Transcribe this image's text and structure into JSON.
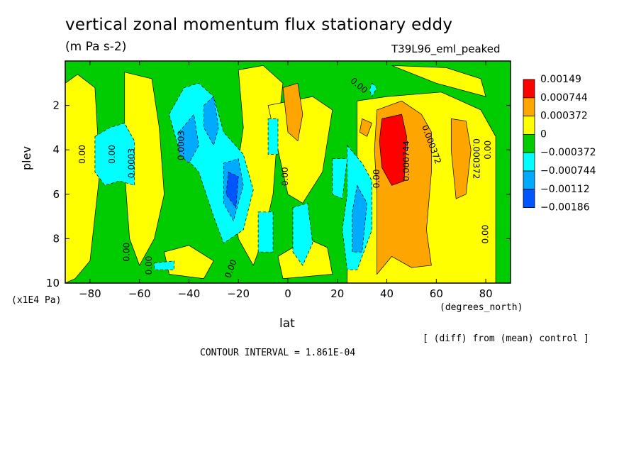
{
  "header": {
    "title": "vertical zonal momentum flux stationary eddy",
    "units": "(m Pa s-2)",
    "run": "T39L96_eml_peaked"
  },
  "footer": {
    "diff_note": "[ (diff) from (mean) control ]",
    "contour_interval": "CONTOUR INTERVAL = 1.861E-04"
  },
  "chart_data": {
    "type": "heatmap",
    "title": "vertical zonal momentum flux stationary eddy",
    "subtitle": "(m Pa s-2)",
    "xlabel": "lat",
    "xunit": "(degrees_north)",
    "ylabel": "plev",
    "yunit": "(x1E4 Pa)",
    "xlim": [
      -90,
      90
    ],
    "ylim": [
      10,
      0
    ],
    "x_ticks": [
      -80,
      -60,
      -40,
      -20,
      0,
      20,
      40,
      60,
      80
    ],
    "x_tick_labels": [
      "−80",
      "−60",
      "−40",
      "−20",
      "0",
      "20",
      "40",
      "60",
      "80"
    ],
    "y_ticks": [
      2,
      4,
      6,
      8,
      10
    ],
    "y_tick_labels": [
      "2",
      "4",
      "6",
      "8",
      "10"
    ],
    "grid": false,
    "legend_position": "right",
    "colors": {
      "red": "#ff0000",
      "orange": "#ffa500",
      "yellow": "#ffff00",
      "green": "#00cc00",
      "cyan": "#00ffff",
      "lightblue": "#00aaff",
      "blue": "#0055ff"
    },
    "legend": [
      {
        "label": "0.00149",
        "color": "#ff0000"
      },
      {
        "label": "0.000744",
        "color": "#ffa500"
      },
      {
        "label": "0.000372",
        "color": "#ffff00"
      },
      {
        "label": "0",
        "color": "#00cc00"
      },
      {
        "label": "−0.000372",
        "color": "#00ffff"
      },
      {
        "label": "−0.000744",
        "color": "#00aaff"
      },
      {
        "label": "−0.00112",
        "color": "#0055ff"
      },
      {
        "label": "−0.00186",
        "color": null
      }
    ],
    "regions": [
      {
        "color": "yellow",
        "points": [
          [
            -90,
            1
          ],
          [
            -85,
            0.6
          ],
          [
            -78,
            1.2
          ],
          [
            -76,
            5
          ],
          [
            -80,
            9
          ],
          [
            -86,
            9.8
          ],
          [
            -90,
            10
          ]
        ]
      },
      {
        "color": "yellow",
        "points": [
          [
            -66,
            0.5
          ],
          [
            -55,
            0.8
          ],
          [
            -52,
            3
          ],
          [
            -50,
            6
          ],
          [
            -54,
            8
          ],
          [
            -60,
            9.2
          ],
          [
            -64,
            8
          ],
          [
            -66,
            5
          ]
        ]
      },
      {
        "color": "yellow",
        "points": [
          [
            -20,
            0.4
          ],
          [
            -10,
            0.2
          ],
          [
            -2,
            1
          ],
          [
            -4,
            3
          ],
          [
            -6,
            6
          ],
          [
            -10,
            8
          ],
          [
            -14,
            9.2
          ],
          [
            -20,
            8
          ],
          [
            -22,
            6
          ],
          [
            -18,
            3
          ]
        ]
      },
      {
        "color": "yellow",
        "points": [
          [
            -50,
            8.6
          ],
          [
            -40,
            8.3
          ],
          [
            -30,
            9.0
          ],
          [
            -34,
            9.8
          ],
          [
            -48,
            9.6
          ]
        ]
      },
      {
        "color": "yellow",
        "points": [
          [
            -8,
            2.0
          ],
          [
            10,
            1.6
          ],
          [
            18,
            2.2
          ],
          [
            14,
            5
          ],
          [
            6,
            6.4
          ],
          [
            0,
            6.0
          ],
          [
            -4,
            4
          ]
        ]
      },
      {
        "color": "yellow",
        "points": [
          [
            -4,
            8.8
          ],
          [
            8,
            8.0
          ],
          [
            16,
            8.4
          ],
          [
            18,
            9.6
          ],
          [
            -2,
            9.8
          ]
        ]
      },
      {
        "color": "yellow",
        "points": [
          [
            28,
            1.8
          ],
          [
            40,
            1.6
          ],
          [
            62,
            1.4
          ],
          [
            78,
            2.2
          ],
          [
            84,
            3.4
          ],
          [
            84,
            10
          ],
          [
            24,
            10
          ],
          [
            24,
            8
          ],
          [
            28,
            5
          ]
        ]
      },
      {
        "color": "yellow",
        "points": [
          [
            42,
            0.2
          ],
          [
            64,
            0.3
          ],
          [
            78,
            0.8
          ],
          [
            80,
            1.6
          ],
          [
            60,
            1.0
          ]
        ]
      },
      {
        "color": "orange",
        "points": [
          [
            -2,
            1.2
          ],
          [
            4,
            1.0
          ],
          [
            6,
            2.4
          ],
          [
            4,
            3.6
          ],
          [
            0,
            3.2
          ]
        ]
      },
      {
        "color": "orange",
        "points": [
          [
            30,
            2.6
          ],
          [
            34,
            2.8
          ],
          [
            32,
            3.4
          ],
          [
            29,
            3.2
          ]
        ]
      },
      {
        "color": "orange",
        "points": [
          [
            36,
            2.2
          ],
          [
            46,
            1.8
          ],
          [
            54,
            2.4
          ],
          [
            58,
            3.2
          ],
          [
            58,
            5.0
          ],
          [
            56,
            7.6
          ],
          [
            58,
            9.2
          ],
          [
            50,
            9.3
          ],
          [
            42,
            8.8
          ],
          [
            36,
            9.6
          ],
          [
            36,
            6
          ],
          [
            35,
            4
          ]
        ]
      },
      {
        "color": "orange",
        "points": [
          [
            66,
            2.6
          ],
          [
            72,
            2.7
          ],
          [
            74,
            4
          ],
          [
            72,
            6
          ],
          [
            68,
            6.2
          ],
          [
            66,
            4
          ]
        ]
      },
      {
        "color": "red",
        "points": [
          [
            38,
            2.6
          ],
          [
            46,
            2.4
          ],
          [
            48,
            3.4
          ],
          [
            47,
            5.4
          ],
          [
            42,
            5.6
          ],
          [
            38,
            4.8
          ],
          [
            37,
            3.6
          ]
        ]
      },
      {
        "color": "cyan",
        "points": [
          [
            -78,
            3.4
          ],
          [
            -72,
            3.0
          ],
          [
            -66,
            2.8
          ],
          [
            -62,
            3.6
          ],
          [
            -62,
            5.6
          ],
          [
            -68,
            5.4
          ],
          [
            -74,
            5.6
          ],
          [
            -78,
            5.0
          ]
        ]
      },
      {
        "color": "cyan",
        "points": [
          [
            -54,
            9.1
          ],
          [
            -46,
            9.0
          ],
          [
            -46,
            9.4
          ],
          [
            -54,
            9.4
          ]
        ]
      },
      {
        "color": "cyan",
        "points": [
          [
            -48,
            2.4
          ],
          [
            -42,
            1.2
          ],
          [
            -36,
            1.0
          ],
          [
            -30,
            1.6
          ],
          [
            -26,
            3.2
          ],
          [
            -18,
            4.2
          ],
          [
            -14,
            5.8
          ],
          [
            -18,
            7.6
          ],
          [
            -26,
            8.2
          ],
          [
            -30,
            7.0
          ],
          [
            -36,
            5.0
          ],
          [
            -44,
            4.0
          ]
        ]
      },
      {
        "color": "cyan",
        "points": [
          [
            -8,
            2.6
          ],
          [
            -4,
            2.6
          ],
          [
            -4,
            4.2
          ],
          [
            -8,
            4.2
          ]
        ]
      },
      {
        "color": "cyan",
        "points": [
          [
            -12,
            6.8
          ],
          [
            -6,
            6.8
          ],
          [
            -6,
            8.6
          ],
          [
            -12,
            8.6
          ]
        ]
      },
      {
        "color": "cyan",
        "points": [
          [
            2,
            6.6
          ],
          [
            8,
            6.4
          ],
          [
            10,
            8.2
          ],
          [
            6,
            9.2
          ],
          [
            2,
            8.6
          ]
        ]
      },
      {
        "color": "cyan",
        "points": [
          [
            18,
            4.4
          ],
          [
            24,
            4.4
          ],
          [
            22,
            6.2
          ],
          [
            18,
            6.0
          ]
        ]
      },
      {
        "color": "cyan",
        "points": [
          [
            24,
            3.8
          ],
          [
            30,
            4.6
          ],
          [
            34,
            5.4
          ],
          [
            34,
            7.6
          ],
          [
            28,
            9.4
          ],
          [
            24,
            9.4
          ],
          [
            22,
            7.6
          ],
          [
            24,
            6
          ]
        ]
      },
      {
        "color": "cyan",
        "points": [
          [
            34,
            1.0
          ],
          [
            36,
            1.2
          ],
          [
            34,
            1.6
          ],
          [
            33,
            1.3
          ]
        ]
      },
      {
        "color": "lightblue",
        "points": [
          [
            -44,
            3.2
          ],
          [
            -38,
            2.4
          ],
          [
            -36,
            3.8
          ],
          [
            -40,
            4.6
          ],
          [
            -44,
            4.2
          ]
        ]
      },
      {
        "color": "lightblue",
        "points": [
          [
            -34,
            2.0
          ],
          [
            -30,
            1.6
          ],
          [
            -28,
            3.0
          ],
          [
            -30,
            3.8
          ],
          [
            -34,
            3.0
          ]
        ]
      },
      {
        "color": "lightblue",
        "points": [
          [
            -26,
            4.6
          ],
          [
            -20,
            4.4
          ],
          [
            -18,
            5.6
          ],
          [
            -22,
            7.2
          ],
          [
            -26,
            6.4
          ]
        ]
      },
      {
        "color": "lightblue",
        "points": [
          [
            28,
            5.6
          ],
          [
            32,
            6.4
          ],
          [
            30,
            8.6
          ],
          [
            26,
            8.6
          ],
          [
            26,
            6.8
          ]
        ]
      },
      {
        "color": "blue",
        "points": [
          [
            -24,
            5.0
          ],
          [
            -20,
            5.2
          ],
          [
            -21,
            6.6
          ],
          [
            -25,
            6.0
          ]
        ]
      }
    ],
    "contour_labels": [
      {
        "text": "0.00",
        "x": -82,
        "y": 4.2,
        "rotate": -90
      },
      {
        "text": "0.00",
        "x": -70,
        "y": 4.2,
        "rotate": -90
      },
      {
        "text": "0.0003",
        "x": -62,
        "y": 4.6,
        "rotate": -90
      },
      {
        "text": "0.00",
        "x": -64,
        "y": 8.6,
        "rotate": -90
      },
      {
        "text": "0.00",
        "x": -55,
        "y": 9.2,
        "rotate": -90
      },
      {
        "text": "0.0003",
        "x": -42,
        "y": 3.8,
        "rotate": -90
      },
      {
        "text": "0.00",
        "x": -22,
        "y": 9.4,
        "rotate": -70
      },
      {
        "text": "0.00",
        "x": 0,
        "y": 5.2,
        "rotate": -90
      },
      {
        "text": "0.00",
        "x": 28,
        "y": 1.2,
        "rotate": 40
      },
      {
        "text": "0.00",
        "x": 37,
        "y": 5.3,
        "rotate": -90
      },
      {
        "text": "0.000744",
        "x": 49,
        "y": 4.5,
        "rotate": -90
      },
      {
        "text": "0.000372",
        "x": 57,
        "y": 3.8,
        "rotate": 70
      },
      {
        "text": "0.000372",
        "x": 75,
        "y": 4.4,
        "rotate": 90
      },
      {
        "text": "0.00",
        "x": 82,
        "y": 4.0,
        "rotate": -90
      },
      {
        "text": "0.00",
        "x": 81,
        "y": 7.8,
        "rotate": -90
      }
    ]
  }
}
